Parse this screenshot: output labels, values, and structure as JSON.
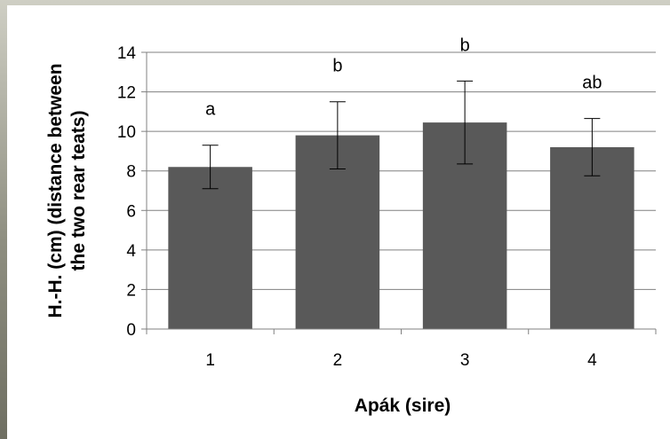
{
  "chart_data": {
    "type": "bar",
    "title": "",
    "xlabel": "Apák  (sire)",
    "ylabel_lines": [
      "H.-H. (cm) (distance between",
      "the two rear teats)"
    ],
    "categories": [
      "1",
      "2",
      "3",
      "4"
    ],
    "values": [
      8.2,
      9.8,
      10.45,
      9.2
    ],
    "errors": [
      1.1,
      1.7,
      2.1,
      1.45
    ],
    "significance_labels": [
      "a",
      "b",
      "b",
      "ab"
    ],
    "ylim": [
      0,
      14
    ],
    "yticks": [
      0,
      2,
      4,
      6,
      8,
      10,
      12,
      14
    ],
    "grid": true,
    "legend": "none",
    "bar_color": "#595959",
    "grid_color": "#808080"
  }
}
